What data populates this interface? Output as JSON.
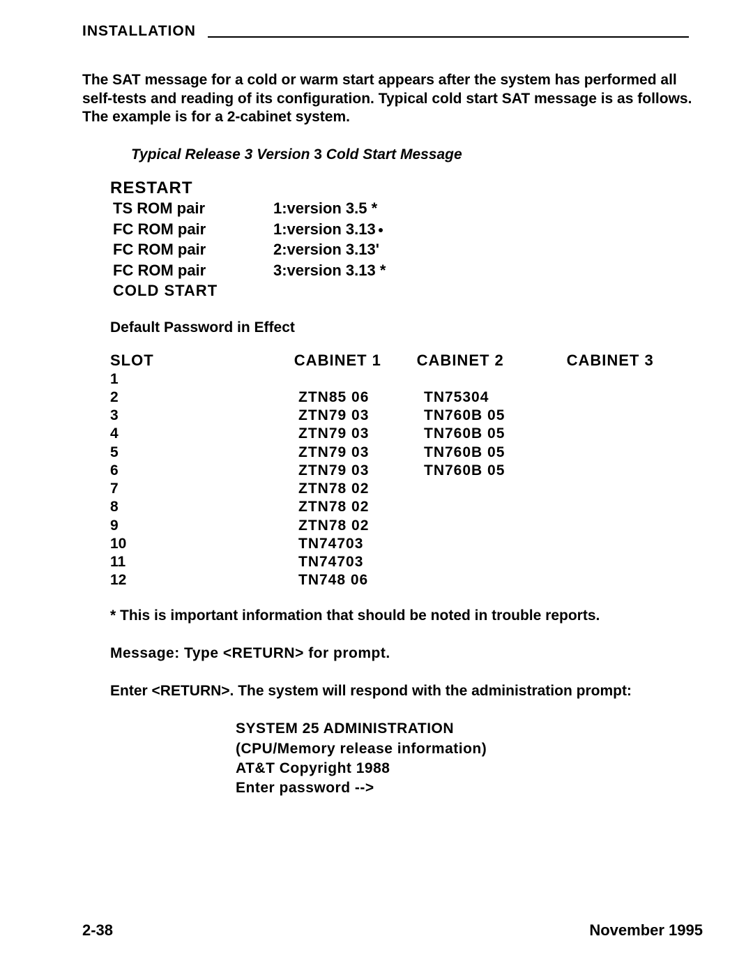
{
  "header": {
    "title": "INSTALLATION"
  },
  "intro": "The SAT message for a cold or warm start appears after the system has performed all self-tests and reading of its configuration. Typical cold start SAT message is as follows. The example is for a 2-cabinet system.",
  "subtitle_italic_1": "Typical Release 3 Version",
  "subtitle_bold_mid": " 3 ",
  "subtitle_italic_2": "Cold Start Message",
  "restart": {
    "title": "RESTART",
    "rows": [
      {
        "label": "TS ROM pair",
        "value": "1:version 3.5 *"
      },
      {
        "label": "FC ROM pair",
        "value": "1:version 3.13",
        "dot": true
      },
      {
        "label": "FC ROM pair",
        "value": "2:version  3.13'"
      },
      {
        "label": "FC ROM pair",
        "value": "3:version 3.13 *"
      }
    ],
    "footer": "COLD START"
  },
  "default_pw": "Default Password in Effect",
  "slots": {
    "headers": [
      "SLOT",
      "CABINET 1",
      "CABINET 2",
      "CABINET 3"
    ],
    "rows": [
      {
        "n": "1",
        "c1": "",
        "c2": ""
      },
      {
        "n": "2",
        "c1": "ZTN85 06",
        "c2": "TN75304"
      },
      {
        "n": "3",
        "c1": "ZTN79 03",
        "c2": "TN760B 05"
      },
      {
        "n": "4",
        "c1": "ZTN79 03",
        "c2": "TN760B 05"
      },
      {
        "n": "5",
        "c1": "ZTN79 03",
        "c2": "TN760B 05"
      },
      {
        "n": "6",
        "c1": "ZTN79 03",
        "c2": "TN760B 05"
      },
      {
        "n": "7",
        "c1": "ZTN78 02",
        "c2": ""
      },
      {
        "n": "8",
        "c1": "ZTN78 02",
        "c2": ""
      },
      {
        "n": "9",
        "c1": "ZTN78 02",
        "c2": ""
      },
      {
        "n": "10",
        "c1": "TN74703",
        "c2": ""
      },
      {
        "n": "11",
        "c1": "TN74703",
        "c2": ""
      },
      {
        "n": "12",
        "c1": "TN748 06",
        "c2": ""
      }
    ]
  },
  "note": "* This is important information that should be noted in trouble reports.",
  "message_line": "Message:  Type  <RETURN>  for  prompt.",
  "enter_line": "Enter <RETURN>. The system will respond with the administration prompt:",
  "admin": {
    "l1": "SYSTEM  25  ADMINISTRATION",
    "l2": "(CPU/Memory  release  information)",
    "l3": "AT&T Copyright 1988",
    "l4": "Enter  password  -->"
  },
  "footer": {
    "page": "2-38",
    "date": "November 1995"
  }
}
